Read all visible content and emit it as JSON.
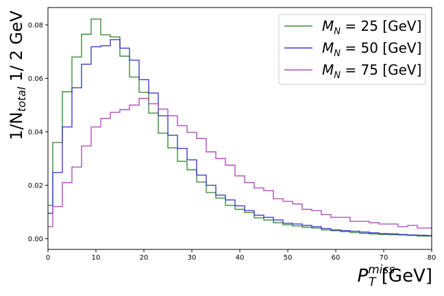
{
  "chart_data": {
    "type": "line",
    "style": "step-histogram",
    "xlabel": {
      "var": "P",
      "sub": "T",
      "sup": "miss",
      "unit": " [GeV]"
    },
    "ylabel": {
      "prefix": "1/N",
      "sub": "total",
      "suffix": "  1/ 2 GeV"
    },
    "xlim": [
      0,
      80
    ],
    "ylim": [
      -0.004,
      0.0865
    ],
    "xticks": [
      0,
      10,
      20,
      30,
      40,
      50,
      60,
      70,
      80
    ],
    "yticks": [
      0.0,
      0.02,
      0.04,
      0.06,
      0.08
    ],
    "ytick_labels": [
      "0.00",
      "0.02",
      "0.04",
      "0.06",
      "0.08"
    ],
    "grid": false,
    "legend_position": "top-right",
    "bin_edges": [
      0,
      1,
      3,
      5,
      7,
      9,
      11,
      13,
      15,
      17,
      19,
      21,
      23,
      25,
      27,
      29,
      31,
      33,
      35,
      37,
      39,
      41,
      43,
      45,
      47,
      49,
      51,
      53,
      55,
      57,
      59,
      61,
      63,
      65,
      67,
      69,
      71,
      73,
      75,
      77,
      79,
      80
    ],
    "series": [
      {
        "label": {
          "var": "M",
          "sub": "N",
          "rest": " = 25 [GeV]"
        },
        "color": "#3c8c3c",
        "values": [
          0.0125,
          0.036,
          0.055,
          0.068,
          0.0765,
          0.0822,
          0.0763,
          0.0755,
          0.0683,
          0.0605,
          0.0548,
          0.047,
          0.0395,
          0.034,
          0.029,
          0.0258,
          0.0212,
          0.0173,
          0.0152,
          0.0125,
          0.011,
          0.0098,
          0.0078,
          0.007,
          0.006,
          0.0052,
          0.0048,
          0.0043,
          0.004,
          0.0033,
          0.003,
          0.0027,
          0.0023,
          0.002,
          0.0018,
          0.0016,
          0.0015,
          0.0014,
          0.0012,
          0.001,
          0.001
        ]
      },
      {
        "label": {
          "var": "M",
          "sub": "N",
          "rest": " = 50 [GeV]"
        },
        "color": "#3c3ccc",
        "values": [
          0.0095,
          0.0248,
          0.0418,
          0.0565,
          0.0653,
          0.0718,
          0.0722,
          0.0745,
          0.0713,
          0.0668,
          0.0595,
          0.0545,
          0.046,
          0.0387,
          0.0338,
          0.0295,
          0.0238,
          0.02,
          0.0163,
          0.0145,
          0.0123,
          0.0105,
          0.0088,
          0.008,
          0.007,
          0.0058,
          0.0055,
          0.005,
          0.0045,
          0.0038,
          0.0033,
          0.003,
          0.0028,
          0.0025,
          0.0022,
          0.0019,
          0.0018,
          0.0016,
          0.0014,
          0.0013,
          0.0012
        ]
      },
      {
        "label": {
          "var": "M",
          "sub": "N",
          "rest": " = 75 [GeV]"
        },
        "color": "#b050b8",
        "values": [
          0.0045,
          0.012,
          0.021,
          0.0268,
          0.0347,
          0.0418,
          0.045,
          0.0473,
          0.0483,
          0.05,
          0.0525,
          0.0505,
          0.0485,
          0.046,
          0.0423,
          0.0398,
          0.0375,
          0.0325,
          0.03,
          0.0275,
          0.0235,
          0.021,
          0.019,
          0.018,
          0.015,
          0.014,
          0.013,
          0.011,
          0.0105,
          0.009,
          0.008,
          0.008,
          0.0065,
          0.0065,
          0.006,
          0.0055,
          0.0055,
          0.0045,
          0.005,
          0.004,
          0.004
        ]
      }
    ]
  }
}
